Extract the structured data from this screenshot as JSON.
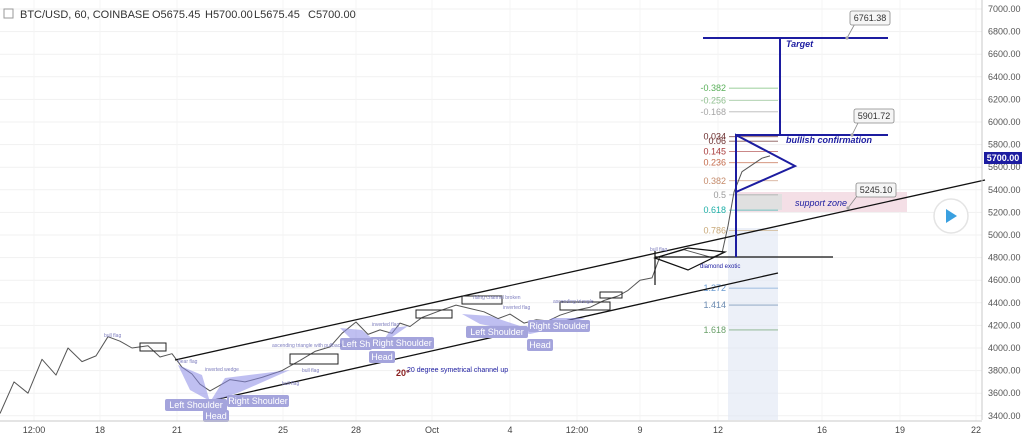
{
  "header": {
    "symbol": "BTC/USD, 60, COINBASE",
    "open": "O5675.45",
    "high": "H5700.00",
    "low": "L5675.45",
    "close": "C5700.00"
  },
  "chart_data": {
    "type": "line",
    "y_ticks": [
      "7000.00",
      "6800.00",
      "6600.00",
      "6400.00",
      "6200.00",
      "6000.00",
      "5800.00",
      "5600.00",
      "5400.00",
      "5200.00",
      "5000.00",
      "4800.00",
      "4600.00",
      "4400.00",
      "4200.00",
      "4000.00",
      "3800.00",
      "3600.00",
      "3400.00"
    ],
    "x_ticks": [
      "12:00",
      "18",
      "21",
      "25",
      "28",
      "Oct",
      "4",
      "12:00",
      "9",
      "12",
      "16",
      "19",
      "22"
    ],
    "current_price": "5700.00",
    "accent_color": "#1c1ca0",
    "price_path": [
      [
        0,
        3420
      ],
      [
        14,
        3700
      ],
      [
        28,
        3600
      ],
      [
        42,
        3900
      ],
      [
        56,
        3760
      ],
      [
        68,
        4000
      ],
      [
        82,
        3880
      ],
      [
        96,
        3930
      ],
      [
        108,
        4100
      ],
      [
        120,
        4060
      ],
      [
        132,
        4000
      ],
      [
        148,
        4020
      ],
      [
        160,
        3920
      ],
      [
        172,
        3950
      ],
      [
        182,
        3830
      ],
      [
        192,
        3770
      ],
      [
        200,
        3680
      ],
      [
        210,
        3620
      ],
      [
        218,
        3660
      ],
      [
        230,
        3720
      ],
      [
        245,
        3700
      ],
      [
        262,
        3740
      ],
      [
        282,
        3800
      ],
      [
        300,
        3890
      ],
      [
        315,
        3970
      ],
      [
        330,
        4010
      ],
      [
        342,
        4130
      ],
      [
        356,
        4230
      ],
      [
        368,
        4120
      ],
      [
        380,
        4160
      ],
      [
        392,
        4130
      ],
      [
        400,
        4220
      ],
      [
        410,
        4190
      ],
      [
        422,
        4270
      ],
      [
        440,
        4330
      ],
      [
        456,
        4380
      ],
      [
        470,
        4350
      ],
      [
        484,
        4320
      ],
      [
        498,
        4260
      ],
      [
        510,
        4300
      ],
      [
        524,
        4220
      ],
      [
        536,
        4250
      ],
      [
        548,
        4240
      ],
      [
        560,
        4290
      ],
      [
        574,
        4330
      ],
      [
        590,
        4360
      ],
      [
        604,
        4420
      ],
      [
        618,
        4460
      ],
      [
        628,
        4510
      ],
      [
        640,
        4600
      ],
      [
        652,
        4620
      ],
      [
        660,
        4810
      ],
      [
        672,
        4840
      ],
      [
        684,
        4870
      ],
      [
        700,
        4830
      ],
      [
        712,
        4800
      ],
      [
        722,
        4840
      ],
      [
        728,
        5080
      ],
      [
        734,
        5380
      ],
      [
        742,
        5560
      ],
      [
        752,
        5620
      ],
      [
        762,
        5680
      ],
      [
        770,
        5700
      ]
    ],
    "fib_levels": [
      {
        "label": "-0.382",
        "value": 6300,
        "color": "#5ab05a"
      },
      {
        "label": "-0.256",
        "value": 6190,
        "color": "#8fbf8f"
      },
      {
        "label": "-0.168",
        "value": 6090,
        "color": "#a5a5a5"
      },
      {
        "label": "0.034",
        "value": 5870,
        "color": "#6b2e2e"
      },
      {
        "label": "0.06",
        "value": 5830,
        "color": "#6b2e2e"
      },
      {
        "label": "0.145",
        "value": 5740,
        "color": "#a83a3a"
      },
      {
        "label": "0.236",
        "value": 5640,
        "color": "#c46a4a"
      },
      {
        "label": "0.382",
        "value": 5480,
        "color": "#c48a6a"
      },
      {
        "label": "0.5",
        "value": 5355,
        "color": "#9a9a9a"
      },
      {
        "label": "0.618",
        "value": 5220,
        "color": "#20b0a8"
      },
      {
        "label": "0.786",
        "value": 5040,
        "color": "#c8a878"
      },
      {
        "label": "1.272",
        "value": 4530,
        "color": "#6a9ad0"
      },
      {
        "label": "1.414",
        "value": 4380,
        "color": "#6a8ab0"
      },
      {
        "label": "1.618",
        "value": 4160,
        "color": "#6aa06a"
      }
    ],
    "price_callouts": [
      "6761.38",
      "5901.72",
      "5245.10"
    ],
    "annotations": {
      "target": "Target",
      "bullish": "bullish confirmation",
      "support": "support zone",
      "channel": "20 degree symetrical channel up",
      "degree": "20°",
      "diamond": "diamond exotic"
    },
    "pattern_labels": [
      "Left Shoulder",
      "Head",
      "Right Shoulder",
      "Left Shoulder",
      "Head",
      "Right Shoulder",
      "Left Shoulder",
      "Head",
      "Right Shoulder",
      "Left Sh"
    ],
    "small_notes": [
      "bull flag",
      "bear flag",
      "inverted wedge",
      "bull flag",
      "ascending triangle with pullback",
      "bull flag",
      "inverted flag",
      "rising channel broken",
      "inverted flag",
      "ascending triangle",
      "bull flag"
    ]
  }
}
